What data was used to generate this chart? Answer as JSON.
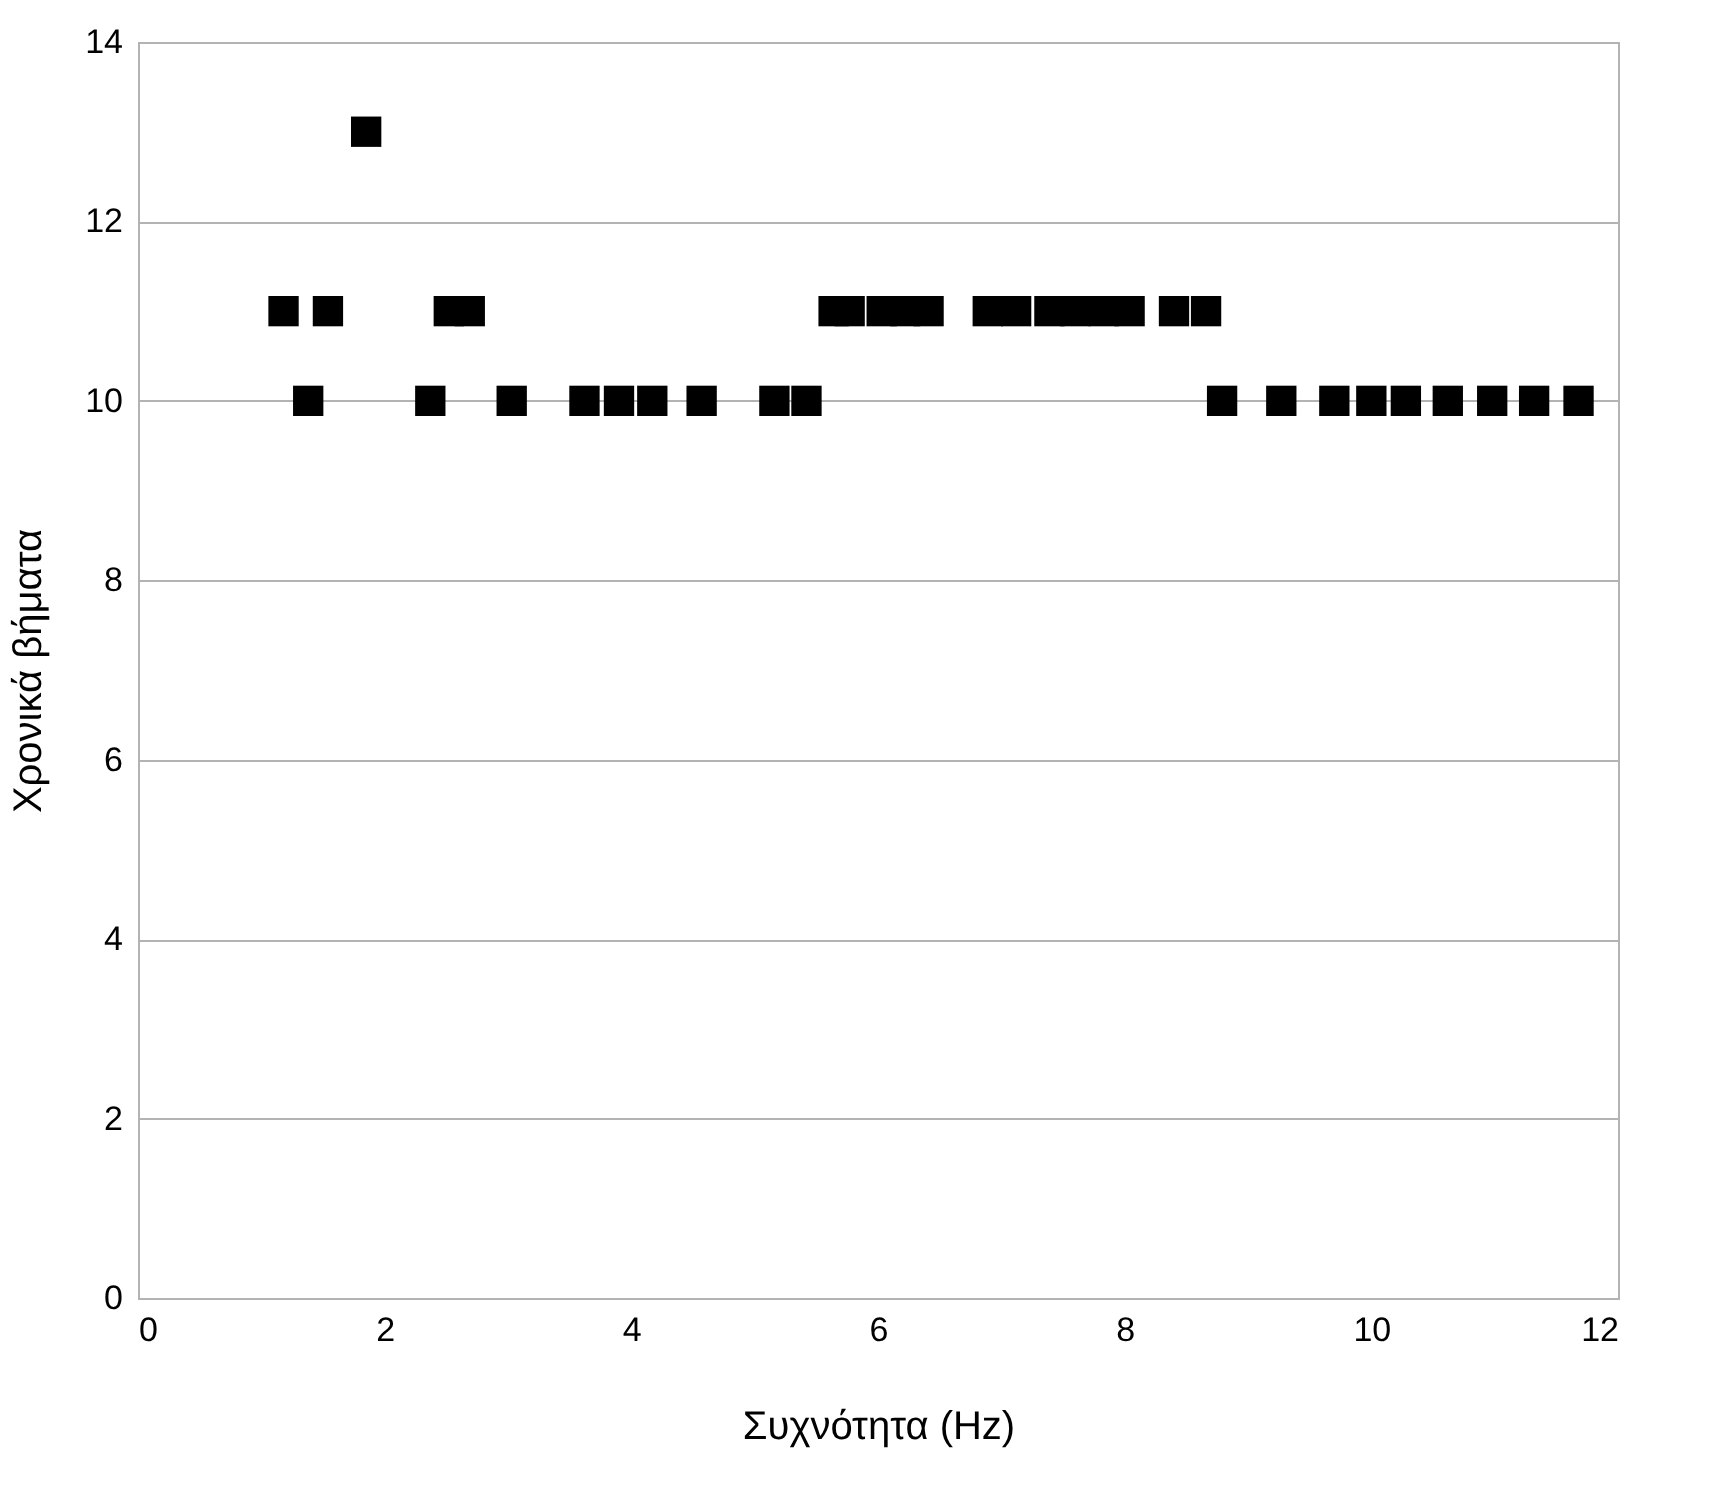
{
  "chart_data": {
    "type": "scatter",
    "xlabel": "Συχνότητα (Hz)",
    "ylabel": "Χρονικά βήματα",
    "x": [
      1.18,
      1.38,
      1.54,
      1.85,
      2.37,
      2.52,
      2.69,
      3.03,
      3.62,
      3.9,
      4.17,
      4.57,
      5.16,
      5.42,
      5.64,
      5.77,
      6.03,
      6.22,
      6.41,
      6.89,
      7.12,
      7.39,
      7.6,
      7.83,
      8.04,
      8.4,
      8.66,
      8.79,
      9.27,
      9.7,
      10.0,
      10.28,
      10.62,
      10.98,
      11.32,
      11.68
    ],
    "series": [
      {
        "color": "#000000",
        "values": [
          11,
          10,
          11,
          13,
          10,
          11,
          11,
          10,
          10,
          10,
          10,
          10,
          10,
          10,
          11,
          11,
          11,
          11,
          11,
          11,
          11,
          11,
          11,
          11,
          11,
          11,
          11,
          10,
          10,
          10,
          10,
          10,
          10,
          10,
          10,
          10
        ]
      }
    ],
    "xlim": [
      0,
      12
    ],
    "xticks": [
      0,
      2,
      4,
      6,
      8,
      10,
      12
    ],
    "ylim": [
      0,
      14
    ],
    "yticks": [
      0,
      2,
      4,
      6,
      8,
      10,
      12,
      14
    ],
    "grid": "y",
    "marker": "square",
    "legend": false
  }
}
